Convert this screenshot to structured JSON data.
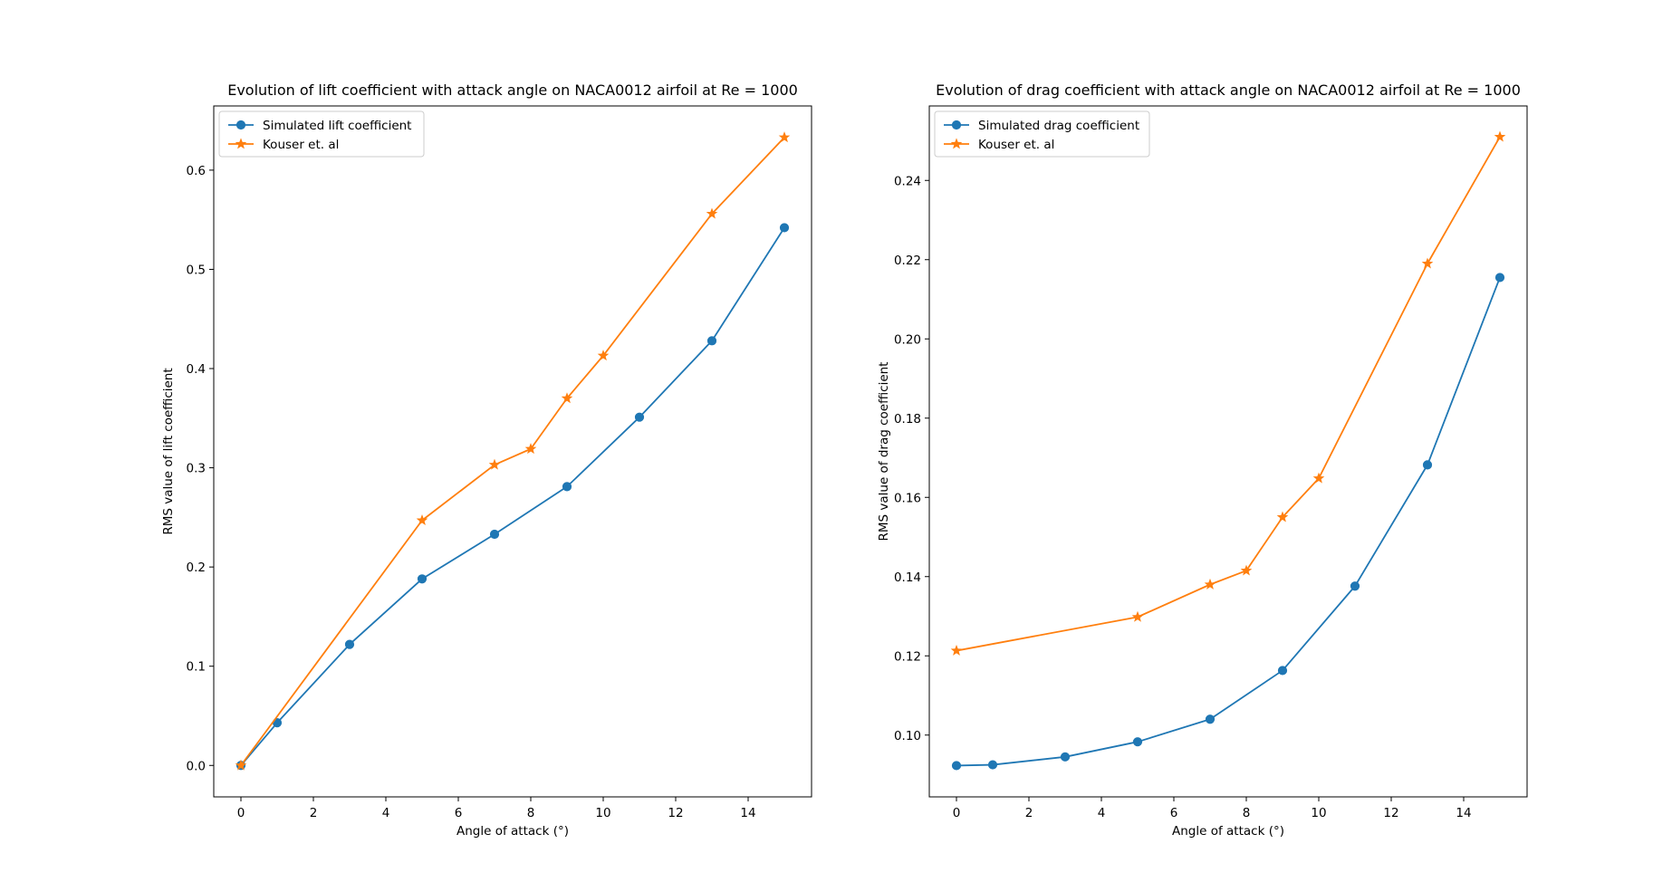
{
  "chart_data": [
    {
      "type": "line",
      "title": "Evolution of lift coefficient with attack angle on NACA0012 airfoil at Re = 1000",
      "xlabel": "Angle of attack (°)",
      "ylabel": "RMS value of lift coefficient",
      "xlim": [
        -0.75,
        15.75
      ],
      "ylim": [
        -0.0317,
        0.6647
      ],
      "xticks": [
        0,
        2,
        4,
        6,
        8,
        10,
        12,
        14
      ],
      "yticks": [
        0.0,
        0.1,
        0.2,
        0.3,
        0.4,
        0.5,
        0.6
      ],
      "ytick_labels": [
        "0.0",
        "0.1",
        "0.2",
        "0.3",
        "0.4",
        "0.5",
        "0.6"
      ],
      "grid": false,
      "legend": "top-left",
      "series": [
        {
          "name": "Simulated lift coefficient",
          "marker": "circle",
          "color": "#1f77b4",
          "x": [
            0,
            1,
            3,
            5,
            7,
            9,
            11,
            13,
            15
          ],
          "y": [
            0.0,
            0.043,
            0.122,
            0.188,
            0.233,
            0.281,
            0.351,
            0.428,
            0.542
          ]
        },
        {
          "name": "Kouser et. al",
          "marker": "star",
          "color": "#ff7f0e",
          "x": [
            0,
            5,
            7,
            8,
            9,
            10,
            13,
            15
          ],
          "y": [
            0.0,
            0.247,
            0.303,
            0.319,
            0.37,
            0.413,
            0.556,
            0.633
          ]
        }
      ]
    },
    {
      "type": "line",
      "title": "Evolution of drag coefficient with attack angle on NACA0012 airfoil at Re = 1000",
      "xlabel": "Angle of attack (°)",
      "ylabel": "RMS value of drag coefficient",
      "xlim": [
        -0.75,
        15.75
      ],
      "ylim": [
        0.0844,
        0.2588
      ],
      "xticks": [
        0,
        2,
        4,
        6,
        8,
        10,
        12,
        14
      ],
      "yticks": [
        0.1,
        0.12,
        0.14,
        0.16,
        0.18,
        0.2,
        0.22,
        0.24
      ],
      "ytick_labels": [
        "0.10",
        "0.12",
        "0.14",
        "0.16",
        "0.18",
        "0.20",
        "0.22",
        "0.24"
      ],
      "grid": false,
      "legend": "top-left",
      "series": [
        {
          "name": "Simulated drag coefficient",
          "marker": "circle",
          "color": "#1f77b4",
          "x": [
            0,
            1,
            3,
            5,
            7,
            9,
            11,
            13,
            15
          ],
          "y": [
            0.0923,
            0.0925,
            0.0945,
            0.0983,
            0.104,
            0.1163,
            0.1376,
            0.1682,
            0.2155
          ]
        },
        {
          "name": "Kouser et. al",
          "marker": "star",
          "color": "#ff7f0e",
          "x": [
            0,
            5,
            7,
            8,
            9,
            10,
            13,
            15
          ],
          "y": [
            0.1213,
            0.1298,
            0.138,
            0.1415,
            0.155,
            0.1648,
            0.219,
            0.251
          ]
        }
      ]
    }
  ]
}
